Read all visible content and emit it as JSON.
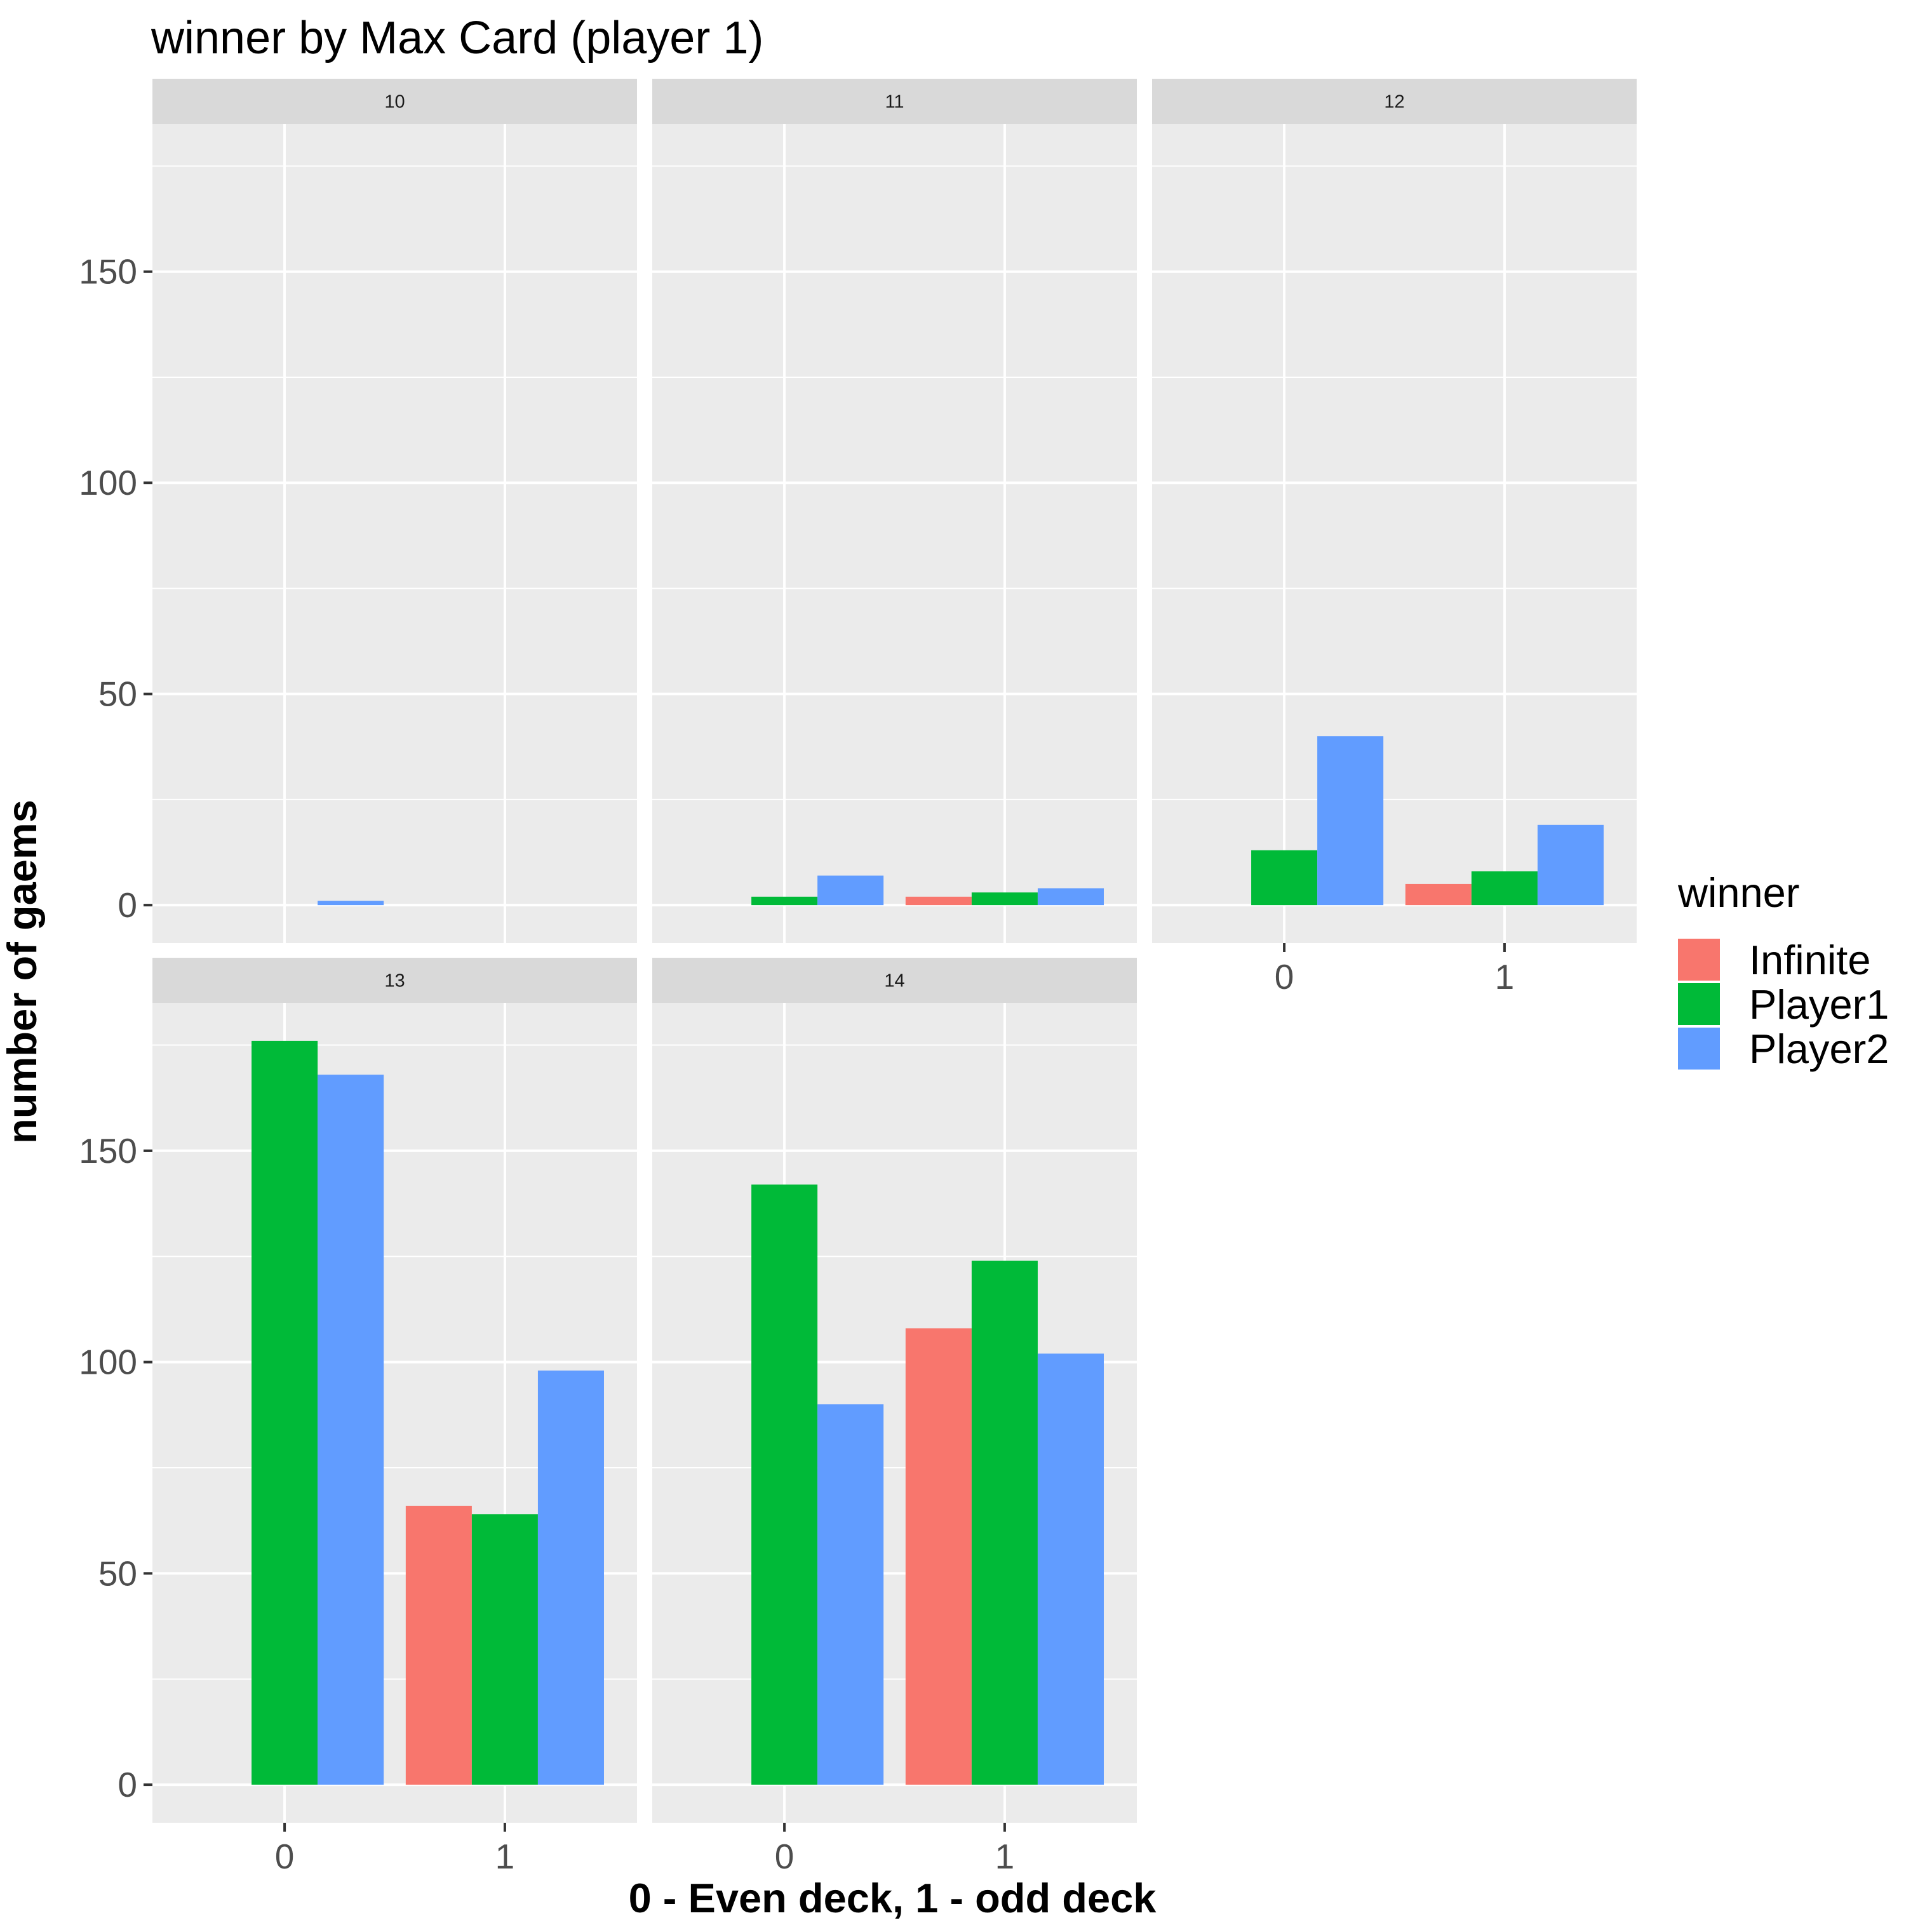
{
  "chart_data": {
    "type": "bar",
    "title": "winner by Max Card (player 1)",
    "xlabel": "0 - Even deck, 1 - odd deck",
    "ylabel": "number of gaems",
    "ylim": [
      -9,
      185
    ],
    "y_ticks": [
      0,
      50,
      100,
      150
    ],
    "x_categories": [
      "0",
      "1"
    ],
    "legend": {
      "title": "winner",
      "position": "right"
    },
    "series": [
      {
        "name": "Infinite",
        "color": "#F8766D"
      },
      {
        "name": "Player1",
        "color": "#00BA38"
      },
      {
        "name": "Player2",
        "color": "#619CFF"
      }
    ],
    "facets": [
      {
        "label": "10",
        "bars": [
          {
            "x": "0",
            "series": "Player2",
            "value": 1
          }
        ]
      },
      {
        "label": "11",
        "bars": [
          {
            "x": "0",
            "series": "Player1",
            "value": 2
          },
          {
            "x": "0",
            "series": "Player2",
            "value": 7
          },
          {
            "x": "1",
            "series": "Infinite",
            "value": 2
          },
          {
            "x": "1",
            "series": "Player1",
            "value": 3
          },
          {
            "x": "1",
            "series": "Player2",
            "value": 4
          }
        ]
      },
      {
        "label": "12",
        "bars": [
          {
            "x": "0",
            "series": "Player1",
            "value": 13
          },
          {
            "x": "0",
            "series": "Player2",
            "value": 40
          },
          {
            "x": "1",
            "series": "Infinite",
            "value": 5
          },
          {
            "x": "1",
            "series": "Player1",
            "value": 8
          },
          {
            "x": "1",
            "series": "Player2",
            "value": 19
          }
        ]
      },
      {
        "label": "13",
        "bars": [
          {
            "x": "0",
            "series": "Player1",
            "value": 176
          },
          {
            "x": "0",
            "series": "Player2",
            "value": 168
          },
          {
            "x": "1",
            "series": "Infinite",
            "value": 66
          },
          {
            "x": "1",
            "series": "Player1",
            "value": 64
          },
          {
            "x": "1",
            "series": "Player2",
            "value": 98
          }
        ]
      },
      {
        "label": "14",
        "bars": [
          {
            "x": "0",
            "series": "Player1",
            "value": 142
          },
          {
            "x": "0",
            "series": "Player2",
            "value": 90
          },
          {
            "x": "1",
            "series": "Infinite",
            "value": 108
          },
          {
            "x": "1",
            "series": "Player1",
            "value": 124
          },
          {
            "x": "1",
            "series": "Player2",
            "value": 102
          }
        ]
      }
    ],
    "grid": true
  }
}
